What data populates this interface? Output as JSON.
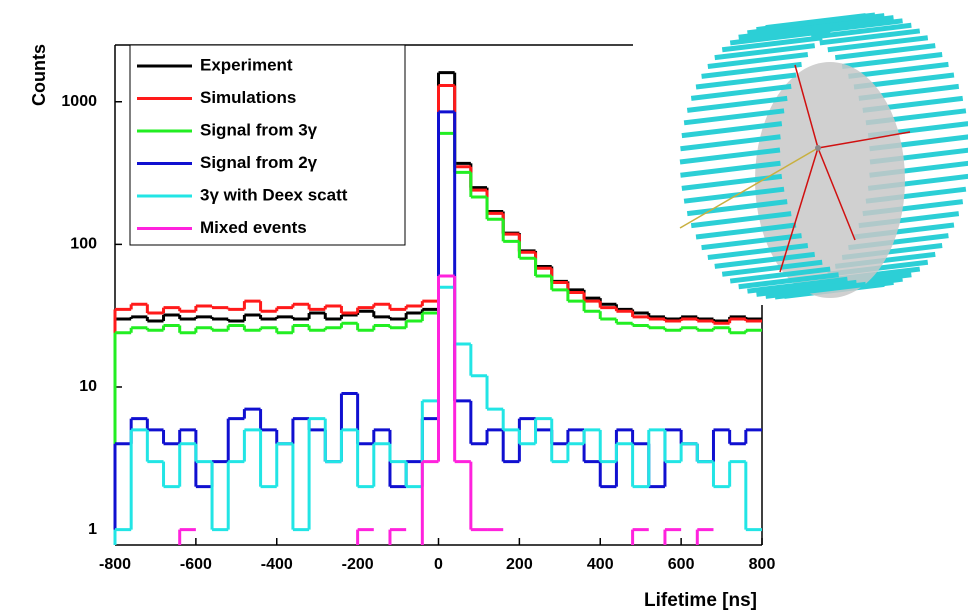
{
  "chart_data": {
    "type": "histogram",
    "log_y": true,
    "y_label": "Counts",
    "x_label": "Lifetime [ns]",
    "xlim": [
      -800,
      800
    ],
    "xticks": [
      -800,
      -600,
      -400,
      -200,
      0,
      200,
      400,
      600,
      800
    ],
    "ylim": [
      0.78,
      2500
    ],
    "yticks": [
      1,
      10,
      100,
      1000
    ],
    "legend": "top-left",
    "bins": [
      -800,
      -760,
      -720,
      -680,
      -640,
      -600,
      -560,
      -520,
      -480,
      -440,
      -400,
      -360,
      -320,
      -280,
      -240,
      -200,
      -160,
      -120,
      -80,
      -40,
      0,
      40,
      80,
      120,
      160,
      200,
      240,
      280,
      320,
      360,
      400,
      440,
      480,
      520,
      560,
      600,
      640,
      680,
      720,
      760,
      800
    ],
    "series": [
      {
        "name": "Experiment",
        "color": "#000000",
        "values": [
          30,
          31,
          29,
          32,
          30,
          31,
          30,
          29,
          32,
          30,
          31,
          30,
          33,
          30,
          32,
          34,
          31,
          30,
          33,
          35,
          1600,
          370,
          250,
          170,
          120,
          90,
          70,
          55,
          48,
          42,
          38,
          35,
          33,
          31,
          30,
          31,
          30,
          29,
          31,
          30
        ]
      },
      {
        "name": "Simulations",
        "color": "#ff1a1a",
        "values": [
          35,
          38,
          33,
          36,
          34,
          37,
          36,
          35,
          40,
          34,
          36,
          38,
          35,
          37,
          33,
          36,
          38,
          35,
          37,
          40,
          1300,
          350,
          240,
          165,
          118,
          88,
          68,
          54,
          46,
          40,
          36,
          34,
          31,
          30,
          29,
          30,
          29,
          28,
          30,
          29
        ]
      },
      {
        "name": "Signal from 3γ",
        "color": "#22ee22",
        "values": [
          24,
          26,
          25,
          27,
          24,
          26,
          25,
          27,
          25,
          26,
          24,
          27,
          25,
          26,
          28,
          25,
          27,
          26,
          29,
          33,
          600,
          320,
          215,
          150,
          105,
          80,
          60,
          48,
          40,
          34,
          30,
          28,
          27,
          26,
          25,
          26,
          25,
          26,
          24,
          25
        ]
      },
      {
        "name": "Signal from 2γ",
        "color": "#1010d0",
        "values": [
          4,
          6,
          5,
          4,
          5,
          2,
          3,
          6,
          7,
          5,
          4,
          6,
          5,
          3,
          9,
          4,
          5,
          2,
          3,
          6,
          850,
          8,
          4,
          5,
          3,
          6,
          5,
          4,
          5,
          3,
          2,
          5,
          4,
          2,
          5,
          4,
          3,
          5,
          4,
          5
        ]
      },
      {
        "name": "3γ  with Deex scatt",
        "color": "#22e5e5",
        "values": [
          1,
          5,
          3,
          2,
          4,
          3,
          1,
          3,
          5,
          2,
          4,
          1,
          6,
          3,
          5,
          2,
          4,
          3,
          2,
          8,
          50,
          20,
          12,
          7,
          5,
          4,
          6,
          3,
          4,
          5,
          3,
          4,
          2,
          5,
          3,
          4,
          3,
          2,
          3,
          1
        ]
      },
      {
        "name": "Mixed events",
        "color": "#ff22dd",
        "values": [
          null,
          null,
          null,
          null,
          1,
          null,
          null,
          null,
          null,
          null,
          null,
          null,
          null,
          null,
          null,
          1,
          null,
          1,
          null,
          3,
          60,
          3,
          1,
          1,
          null,
          null,
          null,
          null,
          null,
          null,
          null,
          null,
          1,
          null,
          1,
          null,
          1,
          null,
          null,
          null
        ]
      }
    ]
  }
}
